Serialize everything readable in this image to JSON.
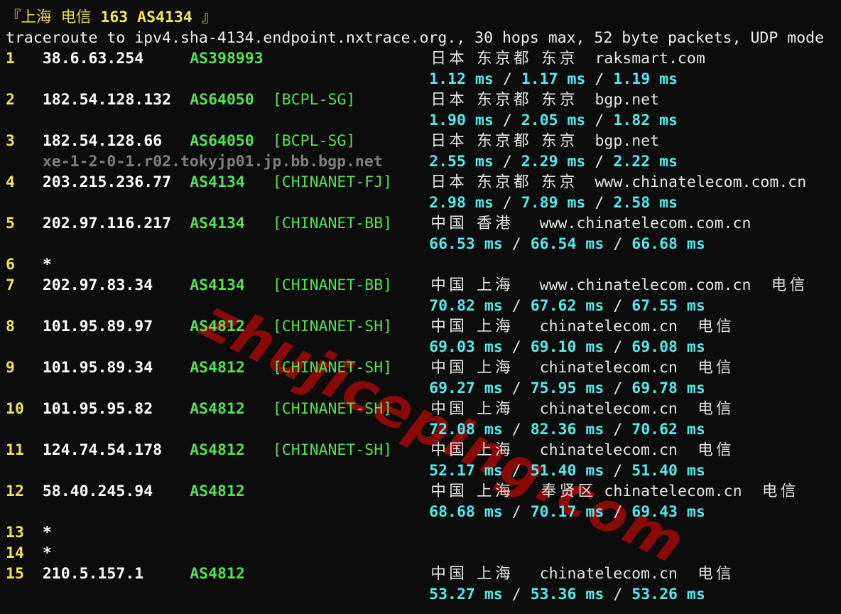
{
  "colors": {
    "background": "#0c0c0c",
    "hop_number": "#f2e35a",
    "ip": "#ffffff",
    "asn": "#55e055",
    "tag": "#55e055",
    "geo": "#e6e6e6",
    "hostname": "#7f7f7f",
    "latency": "#55eaea",
    "separator": "#e6e6e6",
    "header": "#e8d84a",
    "command": "#f0f0f0"
  },
  "header": {
    "prefix": "『上海 电信 ",
    "bold": "163 AS4134",
    "suffix": " 』"
  },
  "command": "traceroute to ipv4.sha-4134.endpoint.nxtrace.org., 30 hops max, 52 byte packets, UDP mode",
  "watermark": "zhujiceping.com",
  "hops": [
    {
      "num": "1",
      "ip": "38.6.63.254",
      "asn": "AS398993",
      "tag": "",
      "geo": "日本 东京都 东京  raksmart.com",
      "times": [
        "1.12 ms",
        "1.17 ms",
        "1.19 ms"
      ]
    },
    {
      "num": "2",
      "ip": "182.54.128.132",
      "asn": "AS64050",
      "tag": "[BCPL-SG]",
      "geo": "日本 东京都 东京  bgp.net",
      "times": [
        "1.90 ms",
        "2.05 ms",
        "1.82 ms"
      ]
    },
    {
      "num": "3",
      "ip": "182.54.128.66",
      "asn": "AS64050",
      "tag": "[BCPL-SG]",
      "geo": "日本 东京都 东京  bgp.net",
      "hostname": "xe-1-2-0-1.r02.tokyjp01.jp.bb.bgp.net",
      "times": [
        "2.55 ms",
        "2.29 ms",
        "2.22 ms"
      ]
    },
    {
      "num": "4",
      "ip": "203.215.236.77",
      "asn": "AS4134",
      "tag": "[CHINANET-FJ]",
      "geo": "日本 东京都 东京  www.chinatelecom.com.cn",
      "times": [
        "2.98 ms",
        "7.89 ms",
        "2.58 ms"
      ]
    },
    {
      "num": "5",
      "ip": "202.97.116.217",
      "asn": "AS4134",
      "tag": "[CHINANET-BB]",
      "geo": "中国 香港   www.chinatelecom.com.cn",
      "times": [
        "66.53 ms",
        "66.54 ms",
        "66.68 ms"
      ]
    },
    {
      "num": "6",
      "ip": "*"
    },
    {
      "num": "7",
      "ip": "202.97.83.34",
      "asn": "AS4134",
      "tag": "[CHINANET-BB]",
      "geo": "中国 上海   www.chinatelecom.com.cn  电信",
      "times": [
        "70.82 ms",
        "67.62 ms",
        "67.55 ms"
      ]
    },
    {
      "num": "8",
      "ip": "101.95.89.97",
      "asn": "AS4812",
      "tag": "[CHINANET-SH]",
      "geo": "中国 上海   chinatelecom.cn  电信",
      "times": [
        "69.03 ms",
        "69.10 ms",
        "69.08 ms"
      ]
    },
    {
      "num": "9",
      "ip": "101.95.89.34",
      "asn": "AS4812",
      "tag": "[CHINANET-SH]",
      "geo": "中国 上海   chinatelecom.cn  电信",
      "times": [
        "69.27 ms",
        "75.95 ms",
        "69.78 ms"
      ]
    },
    {
      "num": "10",
      "ip": "101.95.95.82",
      "asn": "AS4812",
      "tag": "[CHINANET-SH]",
      "geo": "中国 上海   chinatelecom.cn  电信",
      "times": [
        "72.08 ms",
        "82.36 ms",
        "70.62 ms"
      ]
    },
    {
      "num": "11",
      "ip": "124.74.54.178",
      "asn": "AS4812",
      "tag": "[CHINANET-SH]",
      "geo": "中国 上海   chinatelecom.cn  电信",
      "times": [
        "52.17 ms",
        "51.40 ms",
        "51.40 ms"
      ]
    },
    {
      "num": "12",
      "ip": "58.40.245.94",
      "asn": "AS4812",
      "tag": "",
      "geo": "中国 上海   奉贤区 chinatelecom.cn  电信",
      "times": [
        "68.68 ms",
        "70.17 ms",
        "69.43 ms"
      ]
    },
    {
      "num": "13",
      "ip": "*"
    },
    {
      "num": "14",
      "ip": "*"
    },
    {
      "num": "15",
      "ip": "210.5.157.1",
      "asn": "AS4812",
      "tag": "",
      "geo": "中国 上海   chinatelecom.cn  电信",
      "times": [
        "53.27 ms",
        "53.36 ms",
        "53.26 ms"
      ]
    }
  ]
}
